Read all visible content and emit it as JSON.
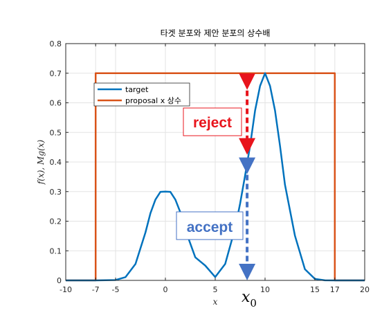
{
  "chart_data": {
    "type": "line",
    "title": "타겟 분포와 제안 분포의 상수배",
    "xlabel": "x",
    "ylabel": "f(x), Mg(x)",
    "xlim": [
      -10,
      20
    ],
    "ylim": [
      0,
      0.8
    ],
    "xticks": [
      -10,
      -7,
      -5,
      0,
      5,
      10,
      15,
      17,
      20
    ],
    "yticks": [
      0,
      0.1,
      0.2,
      0.3,
      0.4,
      0.5,
      0.6,
      0.7,
      0.8
    ],
    "xtick_labels": [
      "-10",
      "-7",
      "-5",
      "0",
      "5",
      "10",
      "15",
      "17",
      "20"
    ],
    "ytick_labels": [
      "0",
      "0.1",
      "0.2",
      "0.3",
      "0.4",
      "0.5",
      "0.6",
      "0.7",
      "0.8"
    ],
    "grid": true,
    "legend_position": "top-left",
    "series": [
      {
        "name": "target",
        "color": "#0072BD",
        "x": [
          -10,
          -7,
          -5,
          -4,
          -3,
          -2,
          -1.5,
          -1,
          -0.5,
          0,
          0.5,
          1,
          1.5,
          2,
          3,
          4,
          5,
          6,
          7,
          7.5,
          8,
          8.5,
          9,
          9.5,
          10,
          10.5,
          11,
          11.5,
          12,
          13,
          14,
          15,
          16,
          17,
          20
        ],
        "y": [
          0,
          0,
          0.0013,
          0.011,
          0.0555,
          0.162,
          0.227,
          0.273,
          0.299,
          0.3,
          0.299,
          0.273,
          0.23,
          0.171,
          0.078,
          0.05,
          0.0113,
          0.0555,
          0.177,
          0.26,
          0.355,
          0.455,
          0.574,
          0.657,
          0.7,
          0.657,
          0.574,
          0.455,
          0.323,
          0.151,
          0.0378,
          0.0051,
          0.0004,
          0,
          0
        ]
      },
      {
        "name": "proposal x 상수",
        "color": "#D95319",
        "x": [
          -10,
          -7,
          -7,
          17,
          17,
          20
        ],
        "y": [
          0,
          0,
          0.7,
          0.7,
          0,
          0
        ]
      }
    ],
    "annotations": [
      {
        "text": "reject",
        "color": "#e8141c",
        "x": 8.2,
        "y_from": 0.42,
        "y_to": 0.7
      },
      {
        "text": "accept",
        "color": "#4472c4",
        "x": 8.2,
        "y_from": 0,
        "y_to": 0.42
      },
      {
        "text": "x",
        "subscript": "0",
        "x": 8.2
      }
    ]
  }
}
